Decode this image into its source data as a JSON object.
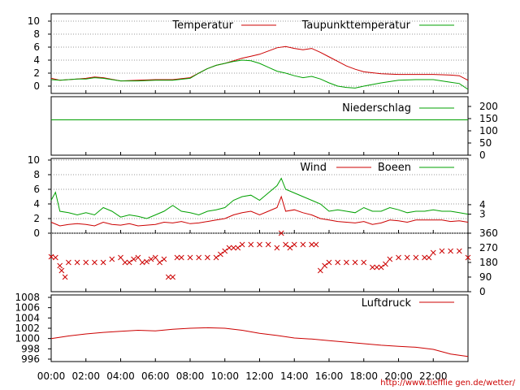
{
  "credit": "http://www.tiefflie gen.de/wetter/",
  "x_ticks": [
    "00:00",
    "02:00",
    "04:00",
    "06:00",
    "08:00",
    "10:00",
    "12:00",
    "14:00",
    "16:00",
    "18:00",
    "20:00",
    "22:00"
  ],
  "colors": {
    "red": "#cc0000",
    "green": "#00a000",
    "grid": "#999999"
  },
  "chart_data": [
    {
      "type": "line",
      "ylim": [
        -2,
        11
      ],
      "y_ticks": [
        "10",
        "8",
        "6",
        "4",
        "2",
        "0"
      ],
      "series": [
        {
          "name": "Temperatur",
          "color": "#cc0000",
          "x": [
            0,
            0.5,
            1,
            1.5,
            2,
            2.5,
            3,
            4,
            5,
            6,
            7,
            8,
            8.5,
            9,
            9.5,
            10,
            10.5,
            11,
            11.5,
            12,
            12.5,
            13,
            13.5,
            14,
            14.5,
            15,
            15.5,
            16,
            16.5,
            17,
            17.5,
            18,
            19,
            20,
            21,
            22,
            23,
            23.5,
            24
          ],
          "values": [
            1.2,
            0.9,
            1.0,
            1.1,
            1.2,
            1.4,
            1.3,
            0.8,
            0.9,
            1.0,
            1.0,
            1.3,
            2.0,
            2.7,
            3.2,
            3.5,
            3.9,
            4.3,
            4.6,
            4.9,
            5.4,
            5.9,
            6.1,
            5.8,
            5.6,
            5.8,
            5.2,
            4.5,
            3.8,
            3.1,
            2.6,
            2.2,
            1.9,
            1.8,
            1.8,
            1.8,
            1.7,
            1.6,
            0.9
          ]
        },
        {
          "name": "Taupunkttemperatur",
          "color": "#00a000",
          "x": [
            0,
            0.5,
            1,
            1.5,
            2,
            2.5,
            3,
            4,
            5,
            6,
            7,
            8,
            8.5,
            9,
            9.5,
            10,
            10.5,
            11,
            11.5,
            12,
            12.5,
            13,
            13.5,
            14,
            14.5,
            15,
            15.5,
            16,
            16.5,
            17,
            17.5,
            18,
            19,
            20,
            21,
            22,
            23,
            23.5,
            24
          ],
          "values": [
            1.0,
            0.9,
            1.0,
            1.1,
            1.1,
            1.3,
            1.2,
            0.8,
            0.8,
            0.9,
            0.9,
            1.2,
            2.0,
            2.7,
            3.2,
            3.5,
            3.8,
            4.0,
            3.9,
            3.5,
            2.9,
            2.3,
            2.0,
            1.6,
            1.3,
            1.5,
            1.1,
            0.5,
            0.0,
            -0.2,
            -0.3,
            0.0,
            0.5,
            0.9,
            1.0,
            1.0,
            0.6,
            0.4,
            -0.5
          ]
        }
      ]
    },
    {
      "type": "line",
      "ylim": [
        0,
        225
      ],
      "y_ticks_right": [
        "200",
        "150",
        "100",
        "50",
        "0"
      ],
      "series": [
        {
          "name": "Niederschlag",
          "color": "#00a000",
          "x": [
            0,
            24
          ],
          "values": [
            145,
            145
          ]
        }
      ]
    },
    {
      "type": "line",
      "ylim": [
        0,
        11
      ],
      "y_ticks": [
        "10",
        "8",
        "6",
        "4",
        "2",
        "0"
      ],
      "y_ticks_right": [
        "4",
        "3"
      ],
      "series": [
        {
          "name": "Wind",
          "color": "#cc0000",
          "x": [
            0,
            0.5,
            1,
            1.5,
            2,
            2.5,
            3,
            3.5,
            4,
            4.5,
            5,
            5.5,
            6,
            6.5,
            7,
            7.5,
            8,
            8.5,
            9,
            9.5,
            10,
            10.5,
            11,
            11.5,
            12,
            12.5,
            13,
            13.25,
            13.5,
            14,
            14.5,
            15,
            15.5,
            16,
            16.5,
            17,
            17.5,
            18,
            18.5,
            19,
            19.5,
            20,
            20.5,
            21,
            21.5,
            22,
            22.5,
            23,
            23.5,
            24
          ],
          "values": [
            1.5,
            1.0,
            1.2,
            1.3,
            1.2,
            1.0,
            1.5,
            1.2,
            1.1,
            1.3,
            1.0,
            1.1,
            1.2,
            1.5,
            1.4,
            1.6,
            1.3,
            1.4,
            1.6,
            1.8,
            2.0,
            2.5,
            2.8,
            3.0,
            2.5,
            3.0,
            3.5,
            5.0,
            3.0,
            3.2,
            2.8,
            2.5,
            2.0,
            1.8,
            1.6,
            1.5,
            1.4,
            1.6,
            1.2,
            1.4,
            1.8,
            1.7,
            1.5,
            1.8,
            1.8,
            1.8,
            1.8,
            1.6,
            1.7,
            1.5
          ]
        },
        {
          "name": "Boeen",
          "color": "#00a000",
          "x": [
            0,
            0.25,
            0.5,
            1,
            1.5,
            2,
            2.5,
            3,
            3.5,
            4,
            4.5,
            5,
            5.5,
            6,
            6.5,
            7,
            7.5,
            8,
            8.5,
            9,
            9.5,
            10,
            10.5,
            11,
            11.5,
            12,
            12.5,
            13,
            13.25,
            13.5,
            14,
            14.5,
            15,
            15.5,
            16,
            16.5,
            17,
            17.5,
            18,
            18.5,
            19,
            19.5,
            20,
            20.5,
            21,
            21.5,
            22,
            22.5,
            23,
            23.5,
            24
          ],
          "values": [
            4.5,
            5.6,
            3.0,
            2.8,
            2.5,
            2.8,
            2.5,
            3.5,
            3.0,
            2.2,
            2.5,
            2.3,
            2.0,
            2.5,
            3.0,
            3.8,
            3.0,
            2.8,
            2.5,
            3.0,
            3.2,
            3.5,
            4.5,
            5.0,
            5.2,
            4.5,
            5.5,
            6.5,
            7.5,
            6.0,
            5.5,
            5.0,
            4.5,
            4.0,
            3.0,
            3.2,
            3.0,
            2.8,
            3.5,
            3.0,
            3.0,
            3.5,
            3.2,
            2.8,
            3.0,
            3.0,
            3.2,
            3.0,
            3.0,
            2.8,
            2.6
          ]
        }
      ]
    },
    {
      "type": "scatter",
      "ylim": [
        0,
        360
      ],
      "y_ticks_right": [
        "360",
        "270",
        "180",
        "90",
        "0"
      ],
      "series": [
        {
          "name": "",
          "color": "#cc0000",
          "x": [
            0,
            0.25,
            0.5,
            0.6,
            0.8,
            1,
            1.5,
            2,
            2.5,
            3,
            3.5,
            4,
            4.25,
            4.5,
            4.75,
            5,
            5.25,
            5.5,
            5.75,
            6,
            6.25,
            6.5,
            6.75,
            7,
            7.25,
            7.5,
            8,
            8.5,
            9,
            9.5,
            9.75,
            10,
            10.25,
            10.5,
            10.75,
            11,
            11.5,
            12,
            12.5,
            13,
            13.25,
            13.5,
            13.75,
            14,
            14.5,
            15,
            15.25,
            15.5,
            15.75,
            16,
            16.5,
            17,
            17.5,
            18,
            18.5,
            18.75,
            19,
            19.25,
            19.5,
            20,
            20.5,
            21,
            21.5,
            21.75,
            22,
            22.5,
            23,
            23.5,
            24
          ],
          "values": [
            215,
            210,
            160,
            130,
            90,
            180,
            180,
            180,
            180,
            180,
            200,
            210,
            180,
            180,
            200,
            210,
            180,
            185,
            200,
            210,
            180,
            200,
            90,
            90,
            210,
            210,
            210,
            210,
            210,
            210,
            230,
            250,
            270,
            270,
            270,
            290,
            290,
            290,
            290,
            270,
            360,
            290,
            270,
            290,
            290,
            290,
            290,
            130,
            160,
            180,
            180,
            180,
            180,
            180,
            150,
            150,
            150,
            170,
            200,
            210,
            210,
            210,
            210,
            210,
            240,
            250,
            250,
            250,
            210
          ]
        }
      ]
    },
    {
      "type": "line",
      "ylim": [
        995.8,
        1009
      ],
      "y_ticks": [
        "1008",
        "1006",
        "1004",
        "1002",
        "1000",
        "998",
        "996"
      ],
      "series": [
        {
          "name": "Luftdruck",
          "color": "#cc0000",
          "x": [
            0,
            1,
            2,
            3,
            4,
            5,
            6,
            7,
            8,
            9,
            10,
            11,
            12,
            13,
            14,
            15,
            16,
            17,
            18,
            19,
            20,
            21,
            22,
            23,
            24
          ],
          "values": [
            1000.0,
            1000.5,
            1000.9,
            1001.2,
            1001.4,
            1001.6,
            1001.5,
            1001.8,
            1002.0,
            1002.1,
            1002.0,
            1001.6,
            1001.0,
            1000.6,
            1000.1,
            999.9,
            999.6,
            999.3,
            999.0,
            998.7,
            998.5,
            998.3,
            997.9,
            997.0,
            996.5
          ]
        }
      ]
    }
  ]
}
